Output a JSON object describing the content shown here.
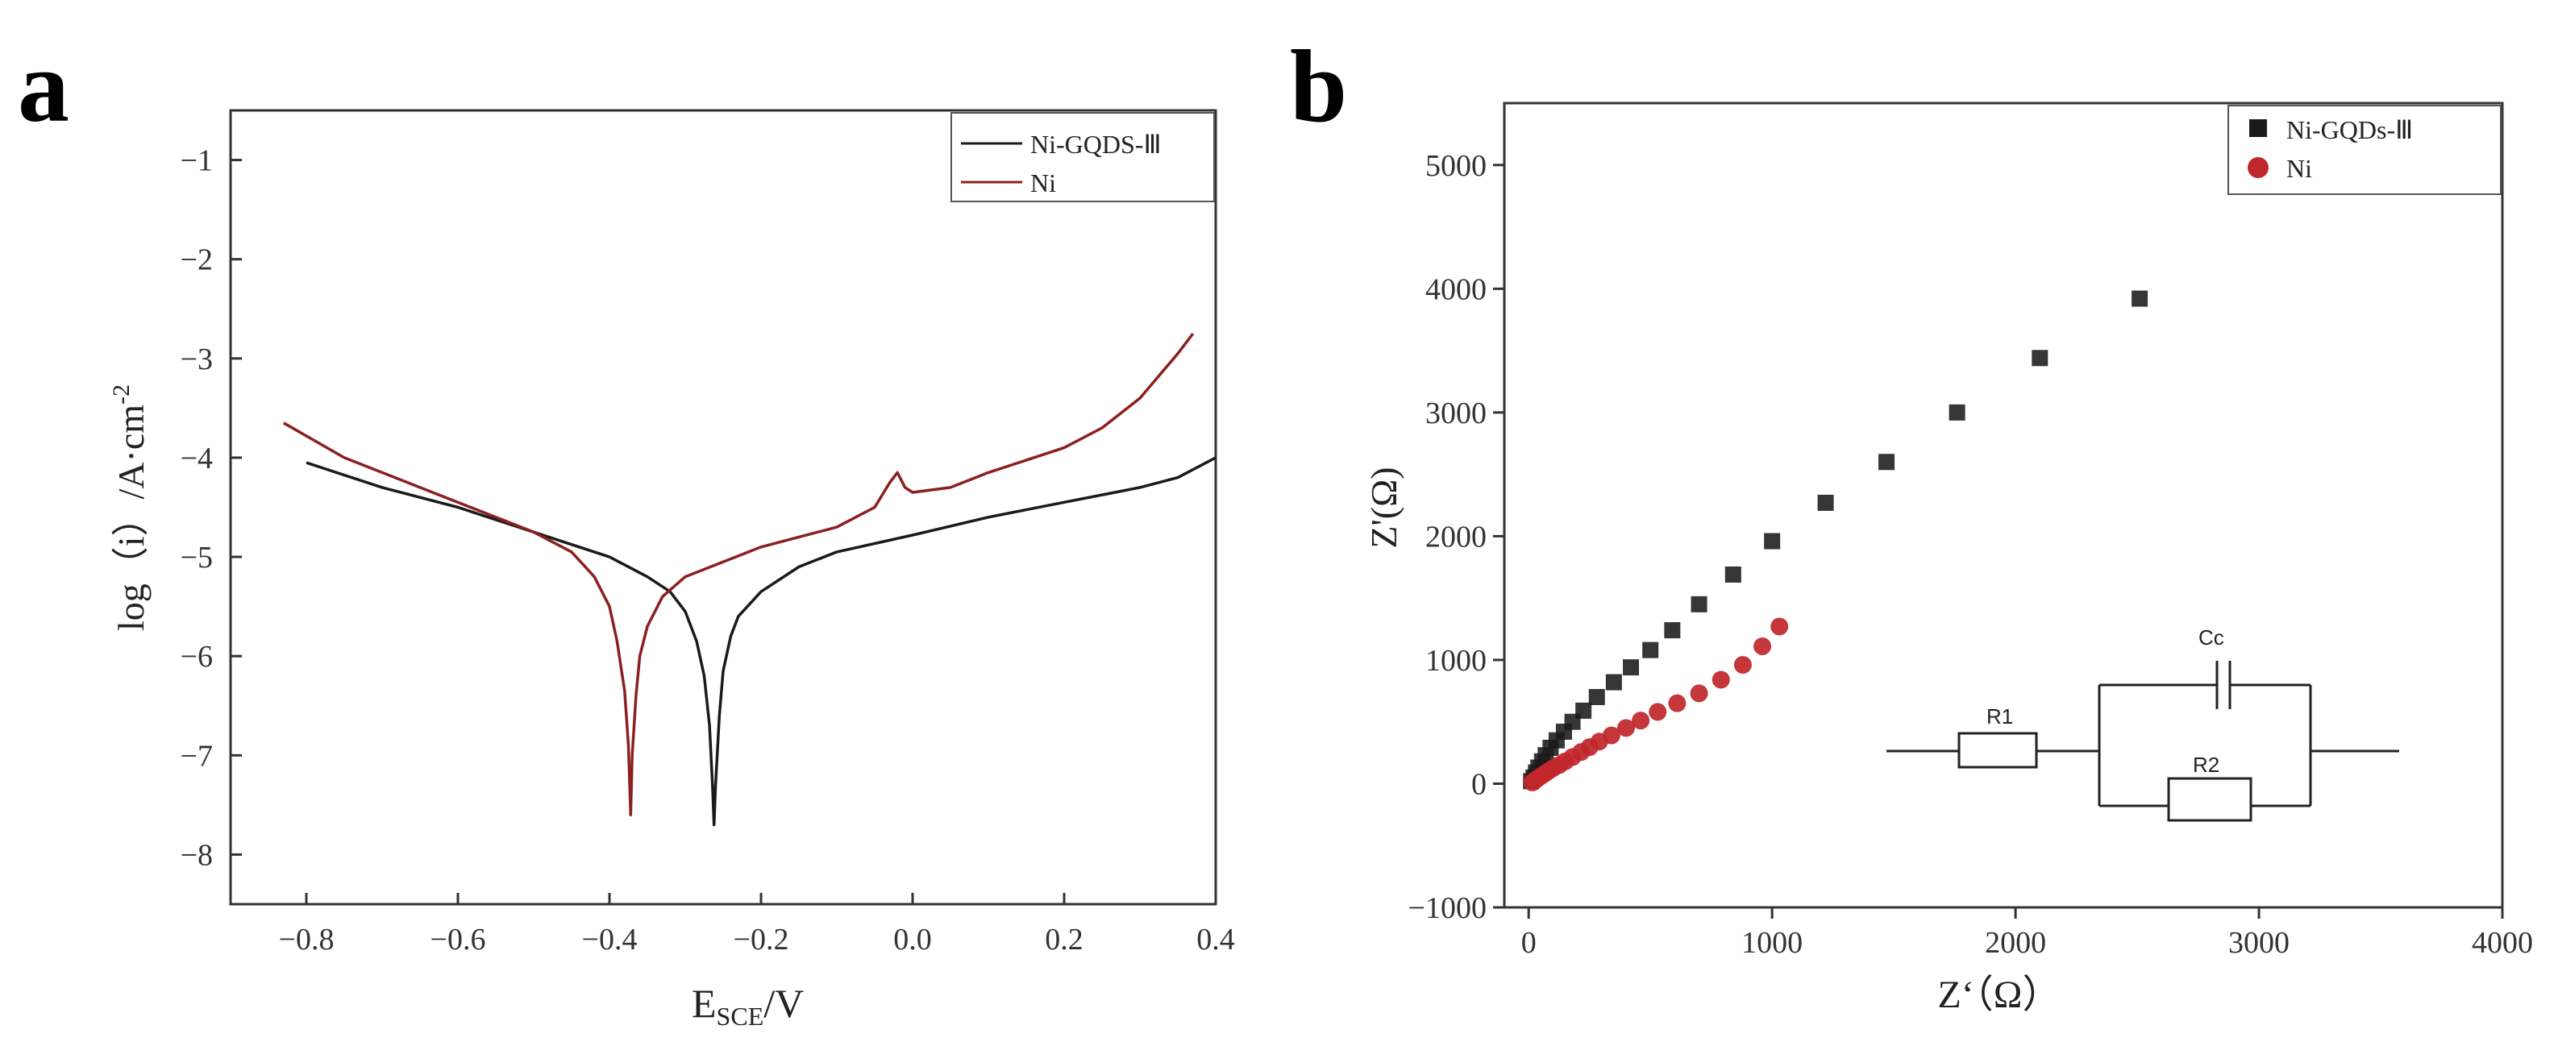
{
  "colors": {
    "ni_gqds": "#1a1a1a",
    "ni_a": "#8b2020",
    "ni_b": "#c0262a",
    "axis": "#333333"
  },
  "chart_data": [
    {
      "panel": "a",
      "type": "line",
      "title": "",
      "xlabel_main": "E",
      "xlabel_sub": "SCE",
      "xlabel_tail": "/V",
      "ylabel_main": "log（i）/A·cm",
      "ylabel_sup": "-2",
      "xlim": [
        -0.9,
        0.4
      ],
      "ylim": [
        -8.5,
        -0.5
      ],
      "xticks": [
        -0.8,
        -0.6,
        -0.4,
        -0.2,
        0.0,
        0.2,
        0.4
      ],
      "xtick_labels": [
        "−0.8",
        "−0.6",
        "−0.4",
        "−0.2",
        "0.0",
        "0.2",
        "0.4"
      ],
      "yticks": [
        -1,
        -2,
        -3,
        -4,
        -5,
        -6,
        -7,
        -8
      ],
      "ytick_labels": [
        "−1",
        "−2",
        "−3",
        "−4",
        "−5",
        "−6",
        "−7",
        "−8"
      ],
      "legend": [
        "Ni-GQDS-Ⅲ",
        "Ni"
      ],
      "series": [
        {
          "name": "Ni-GQDS-Ⅲ",
          "color": "#1a1a1a",
          "x": [
            -0.8,
            -0.7,
            -0.6,
            -0.5,
            -0.4,
            -0.35,
            -0.32,
            -0.3,
            -0.285,
            -0.275,
            -0.268,
            -0.264,
            -0.262,
            -0.26,
            -0.255,
            -0.25,
            -0.24,
            -0.23,
            -0.2,
            -0.15,
            -0.1,
            0.0,
            0.1,
            0.2,
            0.3,
            0.35,
            0.4
          ],
          "y": [
            -4.05,
            -4.3,
            -4.5,
            -4.75,
            -5.0,
            -5.2,
            -5.35,
            -5.55,
            -5.85,
            -6.2,
            -6.7,
            -7.3,
            -7.7,
            -7.3,
            -6.6,
            -6.15,
            -5.8,
            -5.6,
            -5.35,
            -5.1,
            -4.95,
            -4.78,
            -4.6,
            -4.45,
            -4.3,
            -4.2,
            -4.0
          ]
        },
        {
          "name": "Ni",
          "color": "#8b2020",
          "x": [
            -0.83,
            -0.75,
            -0.65,
            -0.55,
            -0.5,
            -0.45,
            -0.42,
            -0.4,
            -0.39,
            -0.38,
            -0.375,
            -0.372,
            -0.37,
            -0.365,
            -0.36,
            -0.35,
            -0.33,
            -0.3,
            -0.25,
            -0.2,
            -0.1,
            -0.05,
            -0.03,
            -0.02,
            -0.01,
            0.0,
            0.05,
            0.1,
            0.2,
            0.25,
            0.3,
            0.35,
            0.37
          ],
          "y": [
            -3.65,
            -4.0,
            -4.3,
            -4.6,
            -4.75,
            -4.95,
            -5.2,
            -5.5,
            -5.85,
            -6.35,
            -6.9,
            -7.6,
            -7.0,
            -6.4,
            -6.0,
            -5.7,
            -5.4,
            -5.2,
            -5.05,
            -4.9,
            -4.7,
            -4.5,
            -4.25,
            -4.15,
            -4.3,
            -4.35,
            -4.3,
            -4.15,
            -3.9,
            -3.7,
            -3.4,
            -2.95,
            -2.75
          ]
        }
      ]
    },
    {
      "panel": "b",
      "type": "scatter",
      "title": "",
      "xlabel": "Z‘（Ω）",
      "ylabel": "Z'(Ω)",
      "xlim": [
        -100,
        4000
      ],
      "ylim": [
        -1000,
        5500
      ],
      "xticks": [
        0,
        1000,
        2000,
        3000,
        4000
      ],
      "xtick_labels": [
        "0",
        "1000",
        "2000",
        "3000",
        "4000"
      ],
      "yticks": [
        -1000,
        0,
        1000,
        2000,
        3000,
        4000,
        5000
      ],
      "ytick_labels": [
        "−1000",
        "0",
        "1000",
        "2000",
        "3000",
        "4000",
        "5000"
      ],
      "legend": [
        "Ni-GQDs-Ⅲ",
        "Ni"
      ],
      "series": [
        {
          "name": "Ni-GQDs-Ⅲ",
          "marker": "square",
          "color": "#1a1a1a",
          "x": [
            10,
            20,
            30,
            40,
            55,
            70,
            90,
            115,
            145,
            180,
            225,
            280,
            350,
            420,
            500,
            590,
            700,
            840,
            1000,
            1220,
            1470,
            1760,
            2100,
            2510
          ],
          "y": [
            20,
            50,
            90,
            130,
            180,
            230,
            290,
            350,
            420,
            500,
            590,
            700,
            820,
            940,
            1080,
            1240,
            1450,
            1690,
            1960,
            2270,
            2600,
            3000,
            3440,
            3920
          ]
        },
        {
          "name": "Ni",
          "marker": "circle",
          "color": "#c0262a",
          "x": [
            15,
            25,
            35,
            50,
            65,
            80,
            100,
            125,
            150,
            180,
            215,
            250,
            290,
            340,
            400,
            460,
            530,
            610,
            700,
            790,
            880,
            960,
            1030
          ],
          "y": [
            10,
            25,
            40,
            60,
            80,
            100,
            125,
            150,
            180,
            215,
            255,
            295,
            340,
            390,
            450,
            510,
            580,
            650,
            730,
            840,
            960,
            1110,
            1270
          ]
        }
      ]
    }
  ],
  "figure": {
    "panel_a_letter": "a",
    "panel_b_letter": "b",
    "circuit": {
      "r1": "R1",
      "r2": "R2",
      "cc": "Cc"
    }
  }
}
